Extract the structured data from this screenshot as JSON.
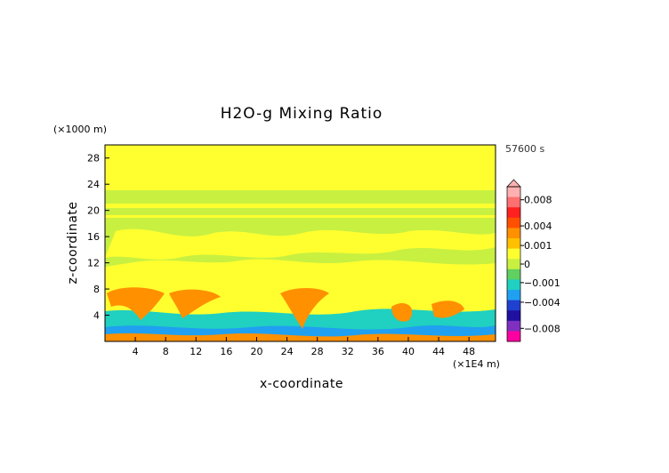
{
  "chart_data": {
    "type": "heatmap",
    "title": "H2O-g Mixing Ratio",
    "xlabel": "x-coordinate",
    "ylabel": "z-coordinate",
    "x_unit": "(×1E4 m)",
    "y_unit": "(×1000 m)",
    "time_label": "57600 s",
    "xlim": [
      0,
      51.5
    ],
    "ylim": [
      0,
      30
    ],
    "x_ticks": [
      4,
      8,
      12,
      16,
      20,
      24,
      28,
      32,
      36,
      40,
      44,
      48
    ],
    "y_ticks": [
      4,
      8,
      12,
      16,
      20,
      24,
      28
    ],
    "colorbar": {
      "tick_labels": [
        "0.008",
        "0.004",
        "0.001",
        "0",
        "−0.001",
        "−0.004",
        "−0.008"
      ],
      "tick_values": [
        0.008,
        0.004,
        0.001,
        0,
        -0.001,
        -0.004,
        -0.008
      ],
      "range": [
        -0.01,
        0.01
      ],
      "colors_high_to_low": [
        "#ffb0b0",
        "#ff7070",
        "#ff2020",
        "#ff5000",
        "#ff9000",
        "#ffc000",
        "#ffff30",
        "#c8f040",
        "#60d060",
        "#20d0c0",
        "#20a0f0",
        "#2040d0",
        "#2010a0",
        "#8030c0",
        "#ff00a0"
      ]
    },
    "layers": [
      {
        "z_range": [
          23,
          30
        ],
        "value_class": "yellow"
      },
      {
        "z_range": [
          21,
          23
        ],
        "value_class": "light-green"
      },
      {
        "z_range": [
          19,
          21
        ],
        "value_class": "yellow/light-green bands"
      },
      {
        "z_range": [
          9,
          19
        ],
        "value_class": "mixed yellow and light-green"
      },
      {
        "z_range": [
          4,
          9
        ],
        "value_class": "orange plumes on yellow"
      },
      {
        "z_range": [
          2,
          4
        ],
        "value_class": "cyan"
      },
      {
        "z_range": [
          0,
          2
        ],
        "value_class": "blue/cyan with orange surface features"
      }
    ]
  }
}
